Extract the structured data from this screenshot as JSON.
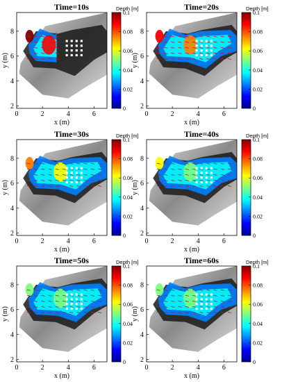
{
  "chart_data": [
    {
      "type": "heatmap",
      "title": "Time=10s",
      "xlabel": "x (m)",
      "ylabel": "y (m)",
      "xlim": [
        0,
        7
      ],
      "ylim": [
        1.8,
        9.5
      ],
      "xticks": [
        "0",
        "2",
        "4",
        "6"
      ],
      "yticks": [
        "2",
        "4",
        "6",
        "8"
      ],
      "colorbar": {
        "title": "Depth [m]",
        "ticks": [
          "0",
          "0.02",
          "0.04",
          "0.06",
          "0.08",
          "0.1"
        ],
        "range": [
          0,
          0.1
        ]
      },
      "wet_fraction": 0.35,
      "peak_depth": 0.1
    },
    {
      "type": "heatmap",
      "title": "Time=20s",
      "xlabel": "x (m)",
      "ylabel": "y (m)",
      "xlim": [
        0,
        7
      ],
      "ylim": [
        1.8,
        9.5
      ],
      "xticks": [
        "0",
        "2",
        "4",
        "6"
      ],
      "yticks": [
        "2",
        "4",
        "6",
        "8"
      ],
      "colorbar": {
        "title": "Depth [m]",
        "ticks": [
          "0",
          "0.02",
          "0.04",
          "0.06",
          "0.08",
          "0.1"
        ],
        "range": [
          0,
          0.1
        ]
      },
      "wet_fraction": 1.0,
      "peak_depth": 0.09
    },
    {
      "type": "heatmap",
      "title": "Time=30s",
      "xlabel": "x (m)",
      "ylabel": "y (m)",
      "xlim": [
        0,
        7
      ],
      "ylim": [
        1.8,
        9.5
      ],
      "xticks": [
        "0",
        "2",
        "4",
        "6"
      ],
      "yticks": [
        "2",
        "4",
        "6",
        "8"
      ],
      "colorbar": {
        "title": "Depth [m]",
        "ticks": [
          "0",
          "0.02",
          "0.04",
          "0.06",
          "0.08",
          "0.1"
        ],
        "range": [
          0,
          0.1
        ]
      },
      "wet_fraction": 1.0,
      "peak_depth": 0.075
    },
    {
      "type": "heatmap",
      "title": "Time=40s",
      "xlabel": "x (m)",
      "ylabel": "y (m)",
      "xlim": [
        0,
        7
      ],
      "ylim": [
        1.8,
        9.5
      ],
      "xticks": [
        "0",
        "2",
        "4",
        "6"
      ],
      "yticks": [
        "2",
        "4",
        "6",
        "8"
      ],
      "colorbar": {
        "title": "Depth [m]",
        "ticks": [
          "0",
          "0.02",
          "0.04",
          "0.06",
          "0.08",
          "0.1"
        ],
        "range": [
          0,
          0.1
        ]
      },
      "wet_fraction": 1.0,
      "peak_depth": 0.06
    },
    {
      "type": "heatmap",
      "title": "Time=50s",
      "xlabel": "x (m)",
      "ylabel": "y (m)",
      "xlim": [
        0,
        7
      ],
      "ylim": [
        1.8,
        9.5
      ],
      "xticks": [
        "0",
        "2",
        "4",
        "6"
      ],
      "yticks": [
        "2",
        "4",
        "6",
        "8"
      ],
      "colorbar": {
        "title": "Depth [m]",
        "ticks": [
          "0",
          "0.02",
          "0.04",
          "0.06",
          "0.08",
          "0.1"
        ],
        "range": [
          0,
          0.1
        ]
      },
      "wet_fraction": 1.0,
      "peak_depth": 0.05
    },
    {
      "type": "heatmap",
      "title": "Time=60s",
      "xlabel": "x (m)",
      "ylabel": "y (m)",
      "xlim": [
        0,
        7
      ],
      "ylim": [
        1.8,
        9.5
      ],
      "xticks": [
        "0",
        "2",
        "4",
        "6"
      ],
      "yticks": [
        "2",
        "4",
        "6",
        "8"
      ],
      "colorbar": {
        "title": "Depth [m]",
        "ticks": [
          "0",
          "0.02",
          "0.04",
          "0.06",
          "0.08",
          "0.1"
        ],
        "range": [
          0,
          0.1
        ]
      },
      "wet_fraction": 1.0,
      "peak_depth": 0.045
    }
  ],
  "colors": {
    "jet": [
      "#00008f",
      "#0000ff",
      "#0080ff",
      "#00ffff",
      "#80ff80",
      "#ffff00",
      "#ff8000",
      "#ff0000",
      "#800000"
    ],
    "terrain_dark": "#1a1a1a",
    "terrain_light": "#d9d9d9",
    "vector": "#c01818",
    "obstacle": "#ffffff"
  }
}
